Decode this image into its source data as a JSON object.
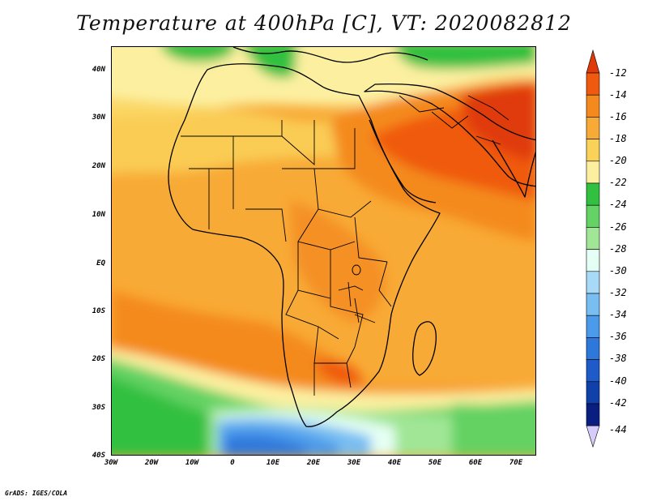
{
  "title": "Temperature at 400hPa [C], VT: 2020082812",
  "credit": "GrADS: IGES/COLA",
  "map": {
    "region": "Africa and surrounding oceans",
    "projection": "lat-lon",
    "lon_range": [
      -30,
      75
    ],
    "lat_range": [
      -40,
      45
    ],
    "lon_ticks": [
      "30W",
      "20W",
      "10W",
      "0",
      "10E",
      "20E",
      "30E",
      "40E",
      "50E",
      "60E",
      "70E"
    ],
    "lat_ticks": [
      "40N",
      "30N",
      "20N",
      "10N",
      "EQ",
      "10S",
      "20S",
      "30S",
      "40S"
    ],
    "features": [
      "country-borders",
      "coastlines",
      "shaded-temperature-field"
    ]
  },
  "colorbar": {
    "labels": [
      "-12",
      "-14",
      "-16",
      "-18",
      "-20",
      "-22",
      "-24",
      "-26",
      "-28",
      "-30",
      "-32",
      "-34",
      "-36",
      "-38",
      "-40",
      "-42",
      "-44"
    ],
    "colors": [
      "#e03a0a",
      "#f05a10",
      "#f48a1e",
      "#f8aa36",
      "#fad25a",
      "#fcf0a0",
      "#32c040",
      "#64d264",
      "#a0e696",
      "#e6fff4",
      "#a8daf8",
      "#78bef2",
      "#4c9aea",
      "#2e78dc",
      "#1e5ac8",
      "#1040aa",
      "#0a1e82",
      "#d6ccfc"
    ]
  }
}
